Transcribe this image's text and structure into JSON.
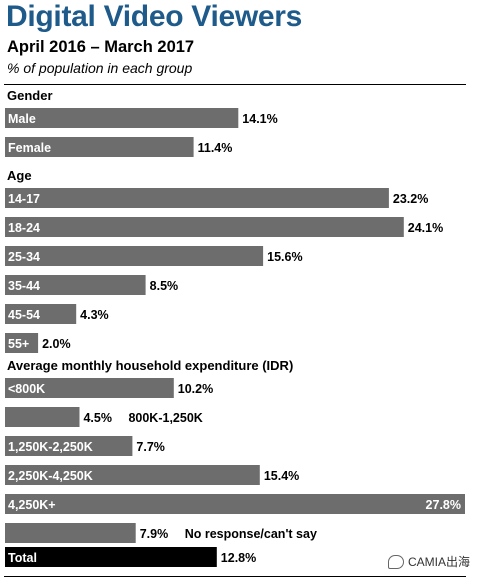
{
  "chart_data": {
    "type": "bar",
    "orientation": "horizontal",
    "title": "Digital Video Viewers",
    "subtitle": "April 2016 – March 2017",
    "ylabel": "% of population in each group",
    "groups": [
      {
        "label": "Gender",
        "bars": [
          {
            "category": "Male",
            "value": 14.1,
            "value_label": "14.1%"
          },
          {
            "category": "Female",
            "value": 11.4,
            "value_label": "11.4%"
          }
        ]
      },
      {
        "label": "Age",
        "bars": [
          {
            "category": "14-17",
            "value": 23.2,
            "value_label": "23.2%"
          },
          {
            "category": "18-24",
            "value": 24.1,
            "value_label": "24.1%"
          },
          {
            "category": "25-34",
            "value": 15.6,
            "value_label": "15.6%"
          },
          {
            "category": "35-44",
            "value": 8.5,
            "value_label": "8.5%"
          },
          {
            "category": "45-54",
            "value": 4.3,
            "value_label": "4.3%"
          },
          {
            "category": "55+",
            "value": 2.0,
            "value_label": "2.0%"
          }
        ]
      },
      {
        "label": "Average monthly household expenditure (IDR)",
        "bars": [
          {
            "category": "<800K",
            "value": 10.2,
            "value_label": "10.2%"
          },
          {
            "category": "800K-1,250K",
            "value": 4.5,
            "value_label": "4.5%"
          },
          {
            "category": "1,250K-2,250K",
            "value": 7.7,
            "value_label": "7.7%"
          },
          {
            "category": "2,250K-4,250K",
            "value": 15.4,
            "value_label": "15.4%"
          },
          {
            "category": "4,250K+",
            "value": 27.8,
            "value_label": "27.8%"
          },
          {
            "category": "No response/can't say",
            "value": 7.9,
            "value_label": "7.9%"
          }
        ]
      },
      {
        "label": "",
        "bars": [
          {
            "category": "Total",
            "value": 12.8,
            "value_label": "12.8%",
            "highlight": true
          }
        ]
      }
    ],
    "colors": {
      "bar": "#6d6d6d",
      "total_bar": "#000000",
      "title": "#1e5a8a"
    },
    "xlim": [
      0,
      27.8
    ]
  },
  "watermark": {
    "text": "CAMIA出海"
  }
}
